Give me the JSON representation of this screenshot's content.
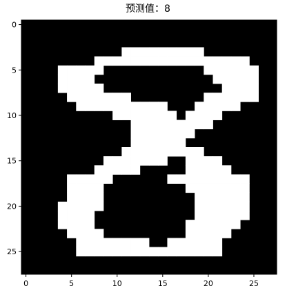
{
  "chart_data": {
    "type": "heatmap",
    "title": "预测值：8",
    "xlabel": "",
    "ylabel": "",
    "x_ticks": [
      0,
      5,
      10,
      15,
      20,
      25
    ],
    "y_ticks": [
      0,
      5,
      10,
      15,
      20,
      25
    ],
    "xlim": [
      -0.5,
      27.5
    ],
    "ylim": [
      27.5,
      -0.5
    ],
    "grid": false,
    "colormap": "gray",
    "colors": {
      "background": "#000000",
      "foreground": "#ffffff"
    },
    "rows": [
      "............................",
      "............................",
      "............................",
      "...........#########........",
      "........#################...",
      "....#####...........######..",
      "....####.............#####..",
      "....#####.............####..",
      ".....#######........######..",
      "......##########...#####....",
      "..........#######.####......",
      "............#########.......",
      "............#######.........",
      "............######..........",
      "...........#########........",
      ".........#######..####......",
      "........#####.....#####.....",
      ".....#####......#########...",
      ".....####.........#######...",
      ".....####..........######...",
      "....#####..........######...",
      "....####...........######...",
      "....####..........######....",
      ".....####.........#####.....",
      "......########..######......",
      "......################......",
      "............................",
      "............................"
    ]
  }
}
